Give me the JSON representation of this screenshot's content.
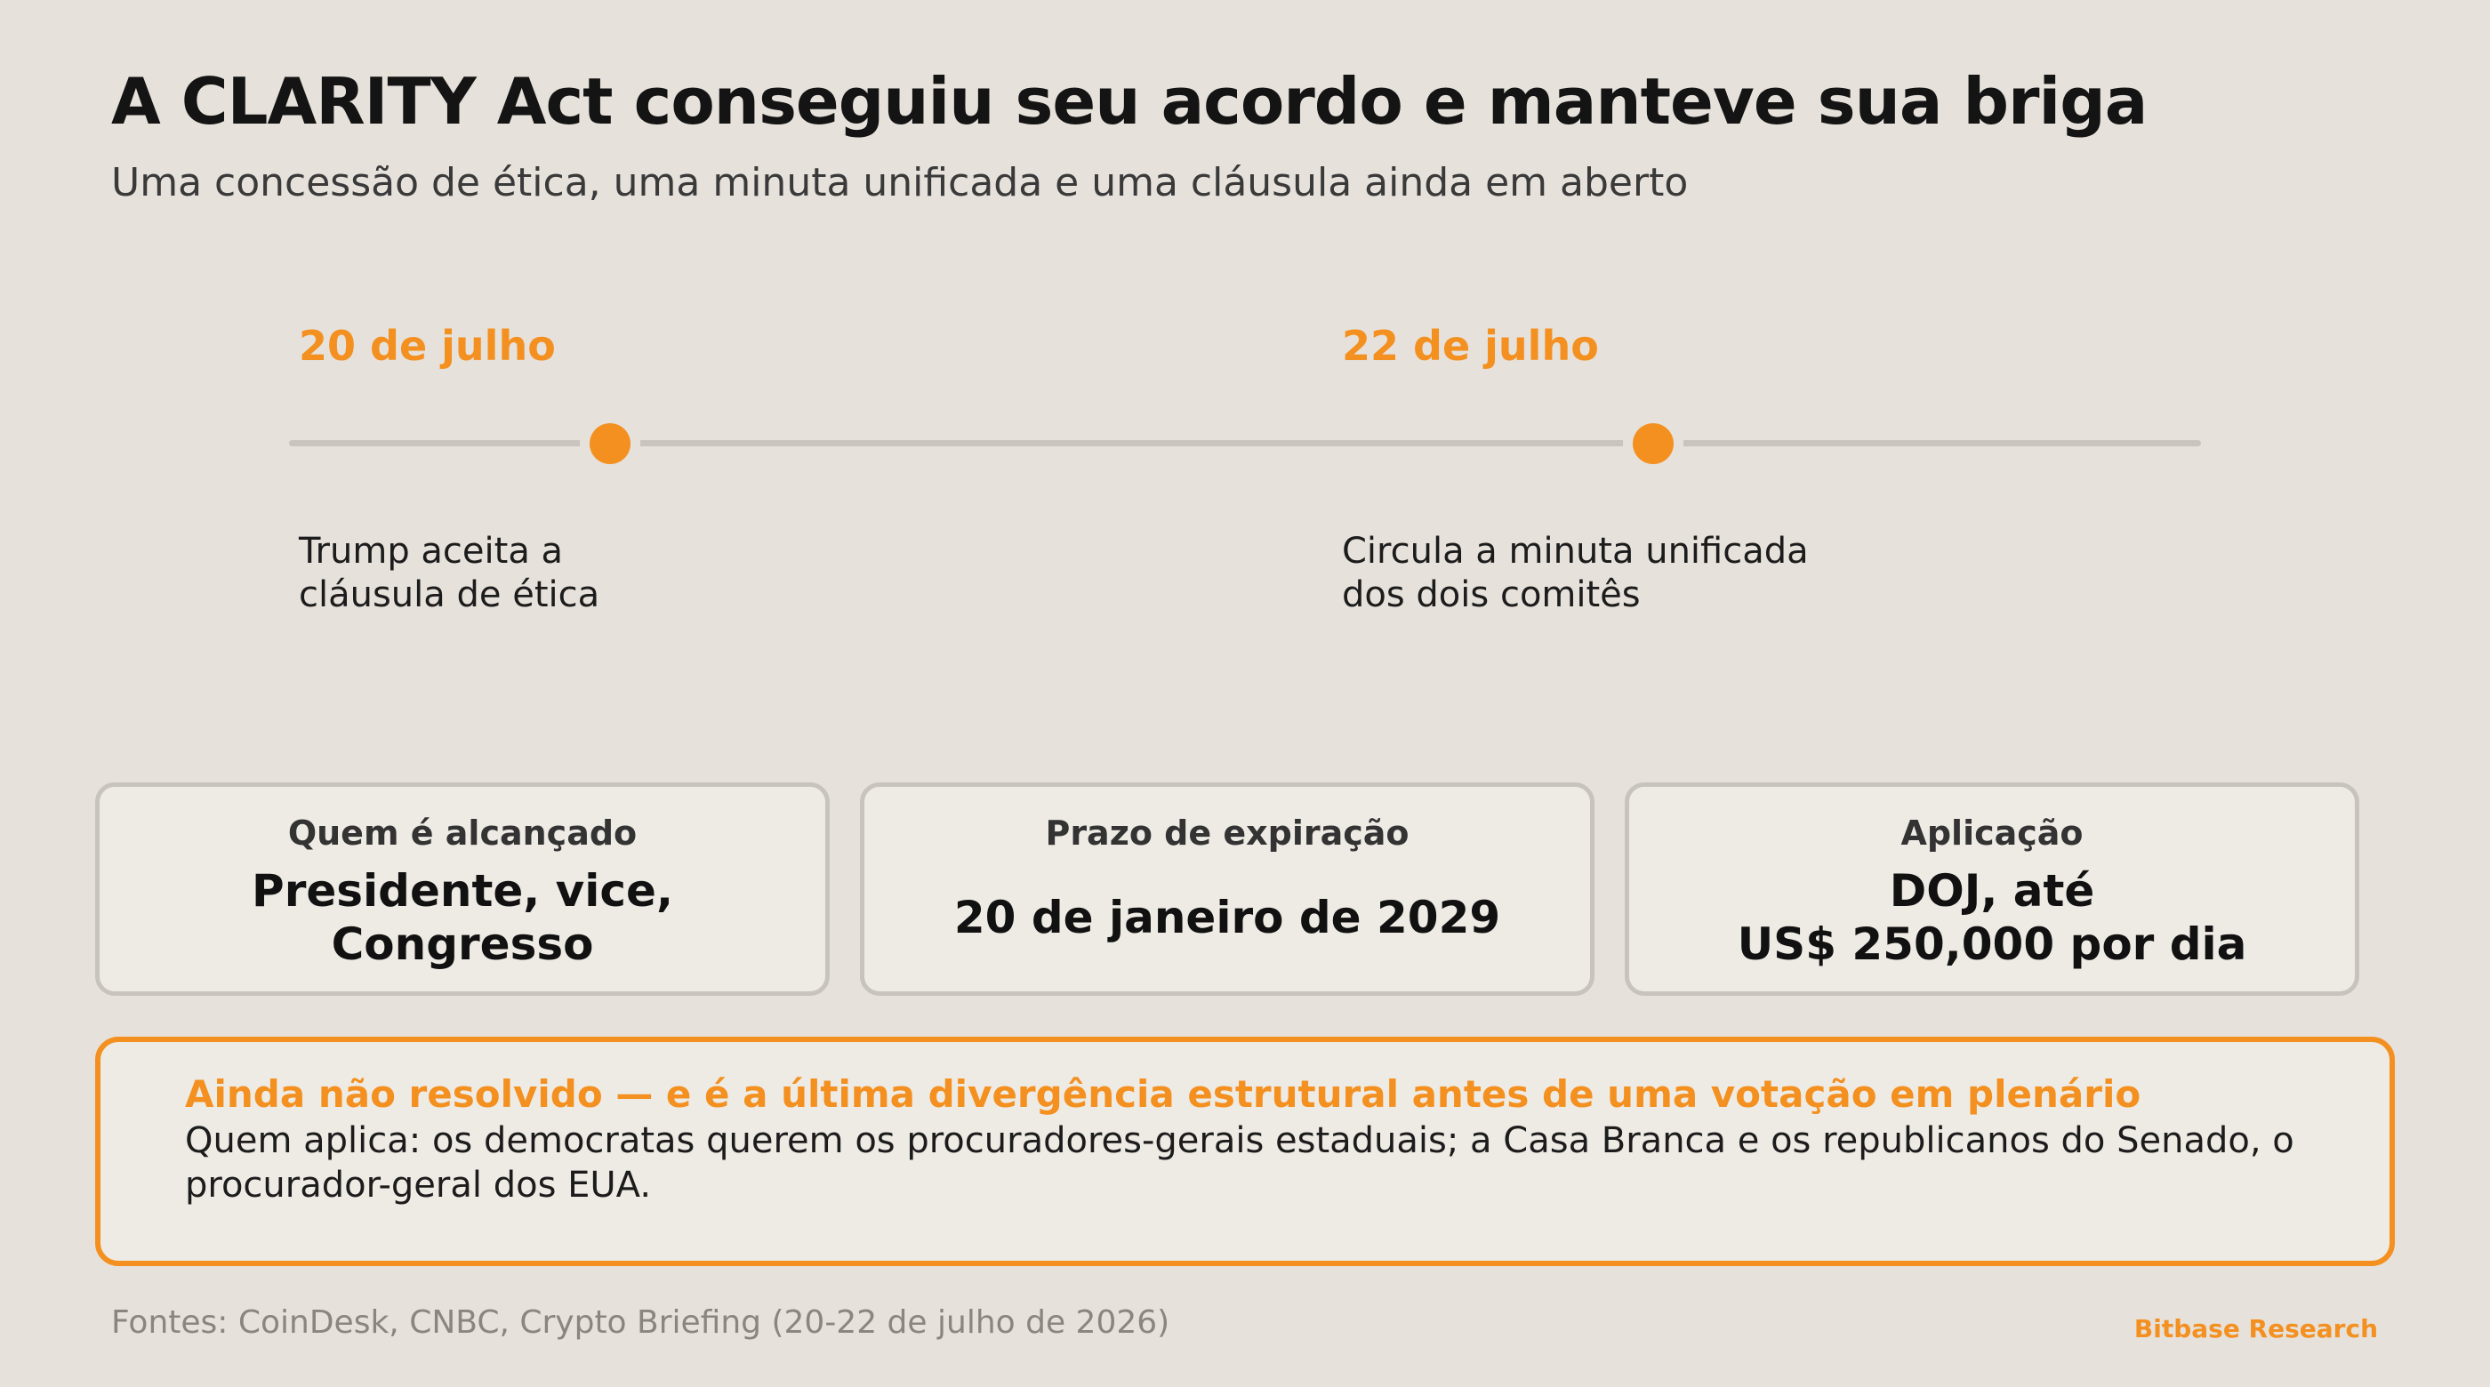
{
  "header": {
    "title": "A CLARITY Act conseguiu seu acordo e manteve sua briga",
    "subtitle": "Uma concessão de ética, uma minuta unificada e uma cláusula ainda em aberto"
  },
  "timeline": {
    "events": [
      {
        "date": "20 de julho",
        "description": "Trump aceita a cláusula de ética"
      },
      {
        "date": "22 de julho",
        "description": "Circula a minuta unificada dos dois comitês"
      }
    ]
  },
  "cards": [
    {
      "label": "Quem é alcançado",
      "value": "Presidente, vice,\nCongresso"
    },
    {
      "label": "Prazo de expiração",
      "value": "20 de janeiro de 2029"
    },
    {
      "label": "Aplicação",
      "value": "DOJ, até\nUS$ 250,000 por dia"
    }
  ],
  "callout": {
    "heading": "Ainda não resolvido — e é a última divergência estrutural antes de uma votação em plenário",
    "body": "Quem aplica: os democratas querem os procuradores-gerais estaduais; a Casa Branca e os republicanos do Senado, o procurador-geral dos EUA."
  },
  "footer": {
    "sources": "Fontes: CoinDesk, CNBC, Crypto Briefing (20-22 de julho de 2026)",
    "brand": "Bitbase Research"
  },
  "colors": {
    "accent": "#f39020",
    "background": "#e6e1db",
    "card_background": "#eeebe5",
    "card_border": "#c8c3bc"
  }
}
